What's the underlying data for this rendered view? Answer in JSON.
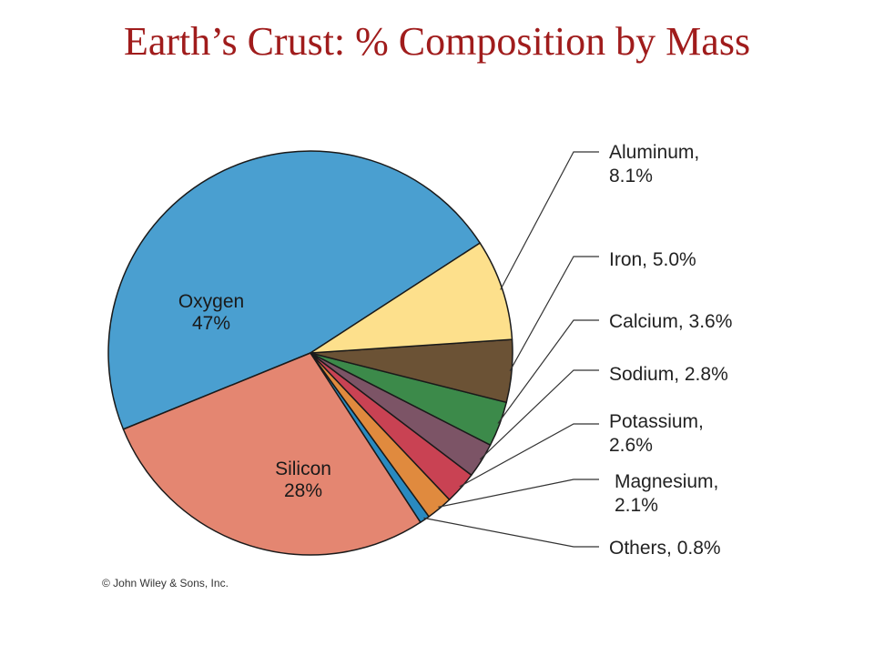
{
  "title": "Earth’s Crust: % Composition by Mass",
  "copyright": "© John Wiley & Sons, Inc.",
  "chart_data": {
    "type": "pie",
    "title": "Earth’s Crust: % Composition by Mass",
    "start_angle_deg": 33,
    "slices": [
      {
        "name": "Oxygen",
        "value": 47,
        "value_label": "47%",
        "color": "#4a9fd0",
        "label_style": "inside",
        "label_lines": [
          "Oxygen",
          "47%"
        ]
      },
      {
        "name": "Silicon",
        "value": 28,
        "value_label": "28%",
        "color": "#e48671",
        "label_style": "inside",
        "label_lines": [
          "Silicon",
          "28%"
        ]
      },
      {
        "name": "Others",
        "value": 0.8,
        "value_label": "0.8%",
        "color": "#2a8ac0",
        "label_style": "callout",
        "label_lines": [
          "Others, 0.8%"
        ]
      },
      {
        "name": "Magnesium",
        "value": 2.1,
        "value_label": "2.1%",
        "color": "#e08a3e",
        "label_style": "callout",
        "label_lines": [
          "Magnesium,",
          "2.1%"
        ]
      },
      {
        "name": "Potassium",
        "value": 2.6,
        "value_label": "2.6%",
        "color": "#c94253",
        "label_style": "callout",
        "label_lines": [
          "Potassium,",
          "2.6%"
        ]
      },
      {
        "name": "Sodium",
        "value": 2.8,
        "value_label": "2.8%",
        "color": "#7c5466",
        "label_style": "callout",
        "label_lines": [
          "Sodium, 2.8%"
        ]
      },
      {
        "name": "Calcium",
        "value": 3.6,
        "value_label": "3.6%",
        "color": "#3c8a4a",
        "label_style": "callout",
        "label_lines": [
          "Calcium, 3.6%"
        ]
      },
      {
        "name": "Iron",
        "value": 5.0,
        "value_label": "5.0%",
        "color": "#6b5235",
        "label_style": "callout",
        "label_lines": [
          "Iron, 5.0%"
        ]
      },
      {
        "name": "Aluminum",
        "value": 8.1,
        "value_label": "8.1%",
        "color": "#fde08c",
        "label_style": "callout",
        "label_lines": [
          "Aluminum,",
          "8.1%"
        ]
      }
    ]
  }
}
